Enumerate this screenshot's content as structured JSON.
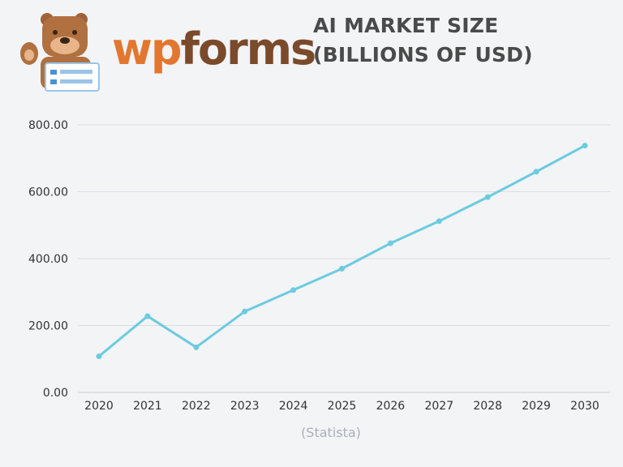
{
  "logo": {
    "wp": "wp",
    "forms": "forms",
    "mascot_icon": "bear-mascot-icon"
  },
  "chart_data": {
    "type": "line",
    "title": "AI MARKET SIZE (BILLIONS OF USD)",
    "source": "(Statista)",
    "categories": [
      "2020",
      "2021",
      "2022",
      "2023",
      "2024",
      "2025",
      "2026",
      "2027",
      "2028",
      "2029",
      "2030"
    ],
    "values": [
      108,
      228,
      135,
      242,
      306,
      370,
      446,
      512,
      584,
      660,
      738
    ],
    "ylim": [
      0,
      800
    ],
    "yticks": [
      "0.00",
      "200.00",
      "400.00",
      "600.00",
      "800.00"
    ],
    "grid": true,
    "color": "#6ccbe0"
  }
}
